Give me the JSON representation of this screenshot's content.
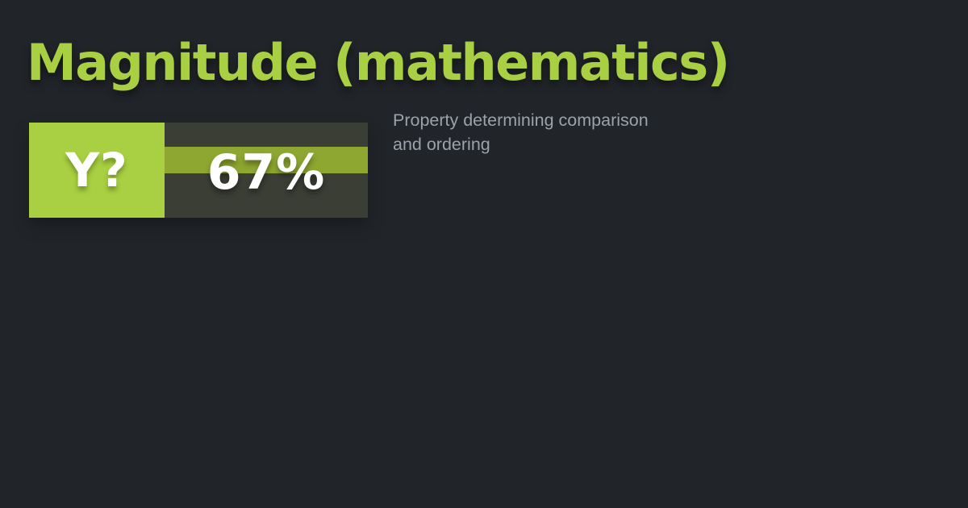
{
  "colors": {
    "background": "#212429",
    "green": "#a9d042",
    "dark_block": "#3a3e35",
    "stripe": "#8ea730",
    "text_grey": "#9aa2ab",
    "white": "#ffffff"
  },
  "card": {
    "title": "Magnitude (mathematics)"
  },
  "badge": {
    "logo_text": "Y?",
    "percent_value": "67%"
  },
  "description": {
    "text": "Property determining comparison and ordering"
  }
}
